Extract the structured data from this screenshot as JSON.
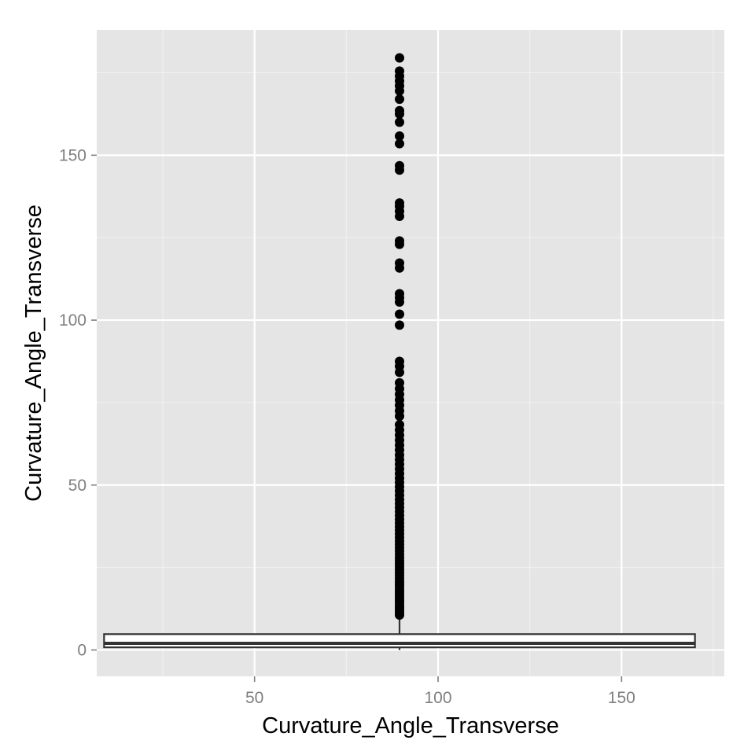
{
  "chart_data": {
    "type": "box",
    "title": "",
    "xlabel": "Curvature_Angle_Transverse",
    "ylabel": "Curvature_Angle_Transverse",
    "xlim": [
      7,
      178
    ],
    "ylim": [
      -8,
      188
    ],
    "x_ticks": [
      50,
      100,
      150
    ],
    "y_ticks": [
      0,
      50,
      100,
      150
    ],
    "x_minor": [
      25,
      75,
      125,
      175
    ],
    "y_minor": [
      25,
      75,
      125,
      175
    ],
    "grid": true,
    "legend": "none",
    "box": {
      "x_center": 89.5,
      "x_min": 9,
      "x_max": 170,
      "q1": 0.8,
      "median": 2,
      "q3": 4.8,
      "whisker_low": 0,
      "whisker_high": 10.5
    },
    "outliers": [
      10.6,
      11.3,
      12.0,
      12.8,
      13.5,
      14.3,
      15.1,
      15.9,
      16.7,
      17.5,
      18.3,
      19.2,
      20.0,
      20.8,
      21.7,
      22.6,
      23.5,
      24.4,
      25.3,
      26.2,
      27.1,
      28.0,
      29.0,
      30.0,
      31.0,
      32.0,
      33.0,
      34.1,
      35.2,
      36.3,
      37.4,
      38.5,
      39.6,
      40.8,
      42.0,
      43.2,
      44.4,
      45.6,
      46.9,
      48.2,
      49.5,
      50.8,
      52.1,
      53.5,
      54.9,
      56.3,
      57.7,
      59.1,
      60.6,
      62.1,
      63.6,
      65.1,
      66.7,
      68.3,
      70.9,
      72.5,
      74.2,
      75.8,
      77.5,
      79.2,
      81.0,
      84.2,
      86.0,
      87.5,
      98.5,
      101.8,
      105.5,
      106.8,
      108.0,
      115.8,
      117.3,
      123.0,
      124.0,
      131.5,
      133.0,
      134.5,
      135.5,
      145.5,
      146.8,
      153.5,
      155.8,
      160.0,
      162.5,
      163.5,
      167.0,
      169.5,
      171.0,
      172.5,
      174.0,
      175.5,
      179.5
    ]
  }
}
